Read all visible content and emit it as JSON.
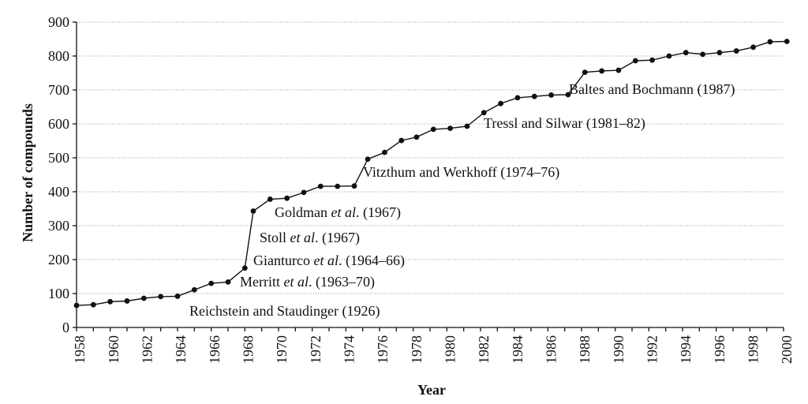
{
  "chart_data": {
    "type": "line",
    "title": "",
    "xlabel": "Year",
    "ylabel": "Number of compounds",
    "xlim": [
      1958,
      2000
    ],
    "ylim": [
      0,
      900
    ],
    "grid": true,
    "x_ticks": [
      "1958",
      "1960",
      "1962",
      "1964",
      "1966",
      "1968",
      "1970",
      "1972",
      "1974",
      "1976",
      "1978",
      "1980",
      "1982",
      "1984",
      "1986",
      "1988",
      "1990",
      "1992",
      "1994",
      "1996",
      "1998",
      "2000"
    ],
    "y_ticks": [
      "0",
      "100",
      "200",
      "300",
      "400",
      "500",
      "600",
      "700",
      "800",
      "900"
    ],
    "series": [
      {
        "x": [
          1958,
          1959,
          1960,
          1961,
          1962,
          1963,
          1964,
          1965,
          1966,
          1967,
          1968,
          1968.5,
          1969.5,
          1970.5,
          1971.5,
          1972.5,
          1973.5,
          1974.5,
          1975.3,
          1976.3,
          1977.3,
          1978.2,
          1979.2,
          1980.2,
          1981.2,
          1982.2,
          1983.2,
          1984.2,
          1985.2,
          1986.2,
          1987.2,
          1988.2,
          1989.2,
          1990.2,
          1991.2,
          1992.2,
          1993.2,
          1994.2,
          1995.2,
          1996.2,
          1997.2,
          1998.2,
          1999.2,
          2000.2
        ],
        "y": [
          65,
          67,
          76,
          78,
          86,
          91,
          92,
          111,
          130,
          134,
          175,
          343,
          378,
          381,
          398,
          416,
          416,
          417,
          496,
          516,
          551,
          561,
          584,
          587,
          593,
          633,
          660,
          677,
          681,
          685,
          686,
          752,
          756,
          758,
          786,
          788,
          800,
          810,
          805,
          810,
          815,
          826,
          842,
          843
        ]
      }
    ],
    "annotations": [
      {
        "label": "Reichstein and Staudinger (1926)",
        "text": "Reichstein and Staudinger (1926)"
      },
      {
        "label": "Merritt et al. (1963–70)",
        "pre": "Merritt ",
        "em": "et al",
        "post": ". (1963–70)"
      },
      {
        "label": "Gianturco et al. (1964–66)",
        "pre": "Gianturco ",
        "em": "et al",
        "post": ". (1964–66)"
      },
      {
        "label": "Stoll et al. (1967)",
        "pre": "Stoll ",
        "em": "et al",
        "post": ". (1967)"
      },
      {
        "label": "Goldman et al. (1967)",
        "pre": "Goldman ",
        "em": "et al",
        "post": ". (1967)"
      },
      {
        "label": "Vitzthum and Werkhoff (1974–76)",
        "text": "Vitzthum and Werkhoff (1974–76)"
      },
      {
        "label": "Tressl and Silwar (1981–82)",
        "text": "Tressl and Silwar (1981–82)"
      },
      {
        "label": "Baltes and Bochmann (1987)",
        "text": "Baltes and Bochmann (1987)"
      }
    ]
  }
}
